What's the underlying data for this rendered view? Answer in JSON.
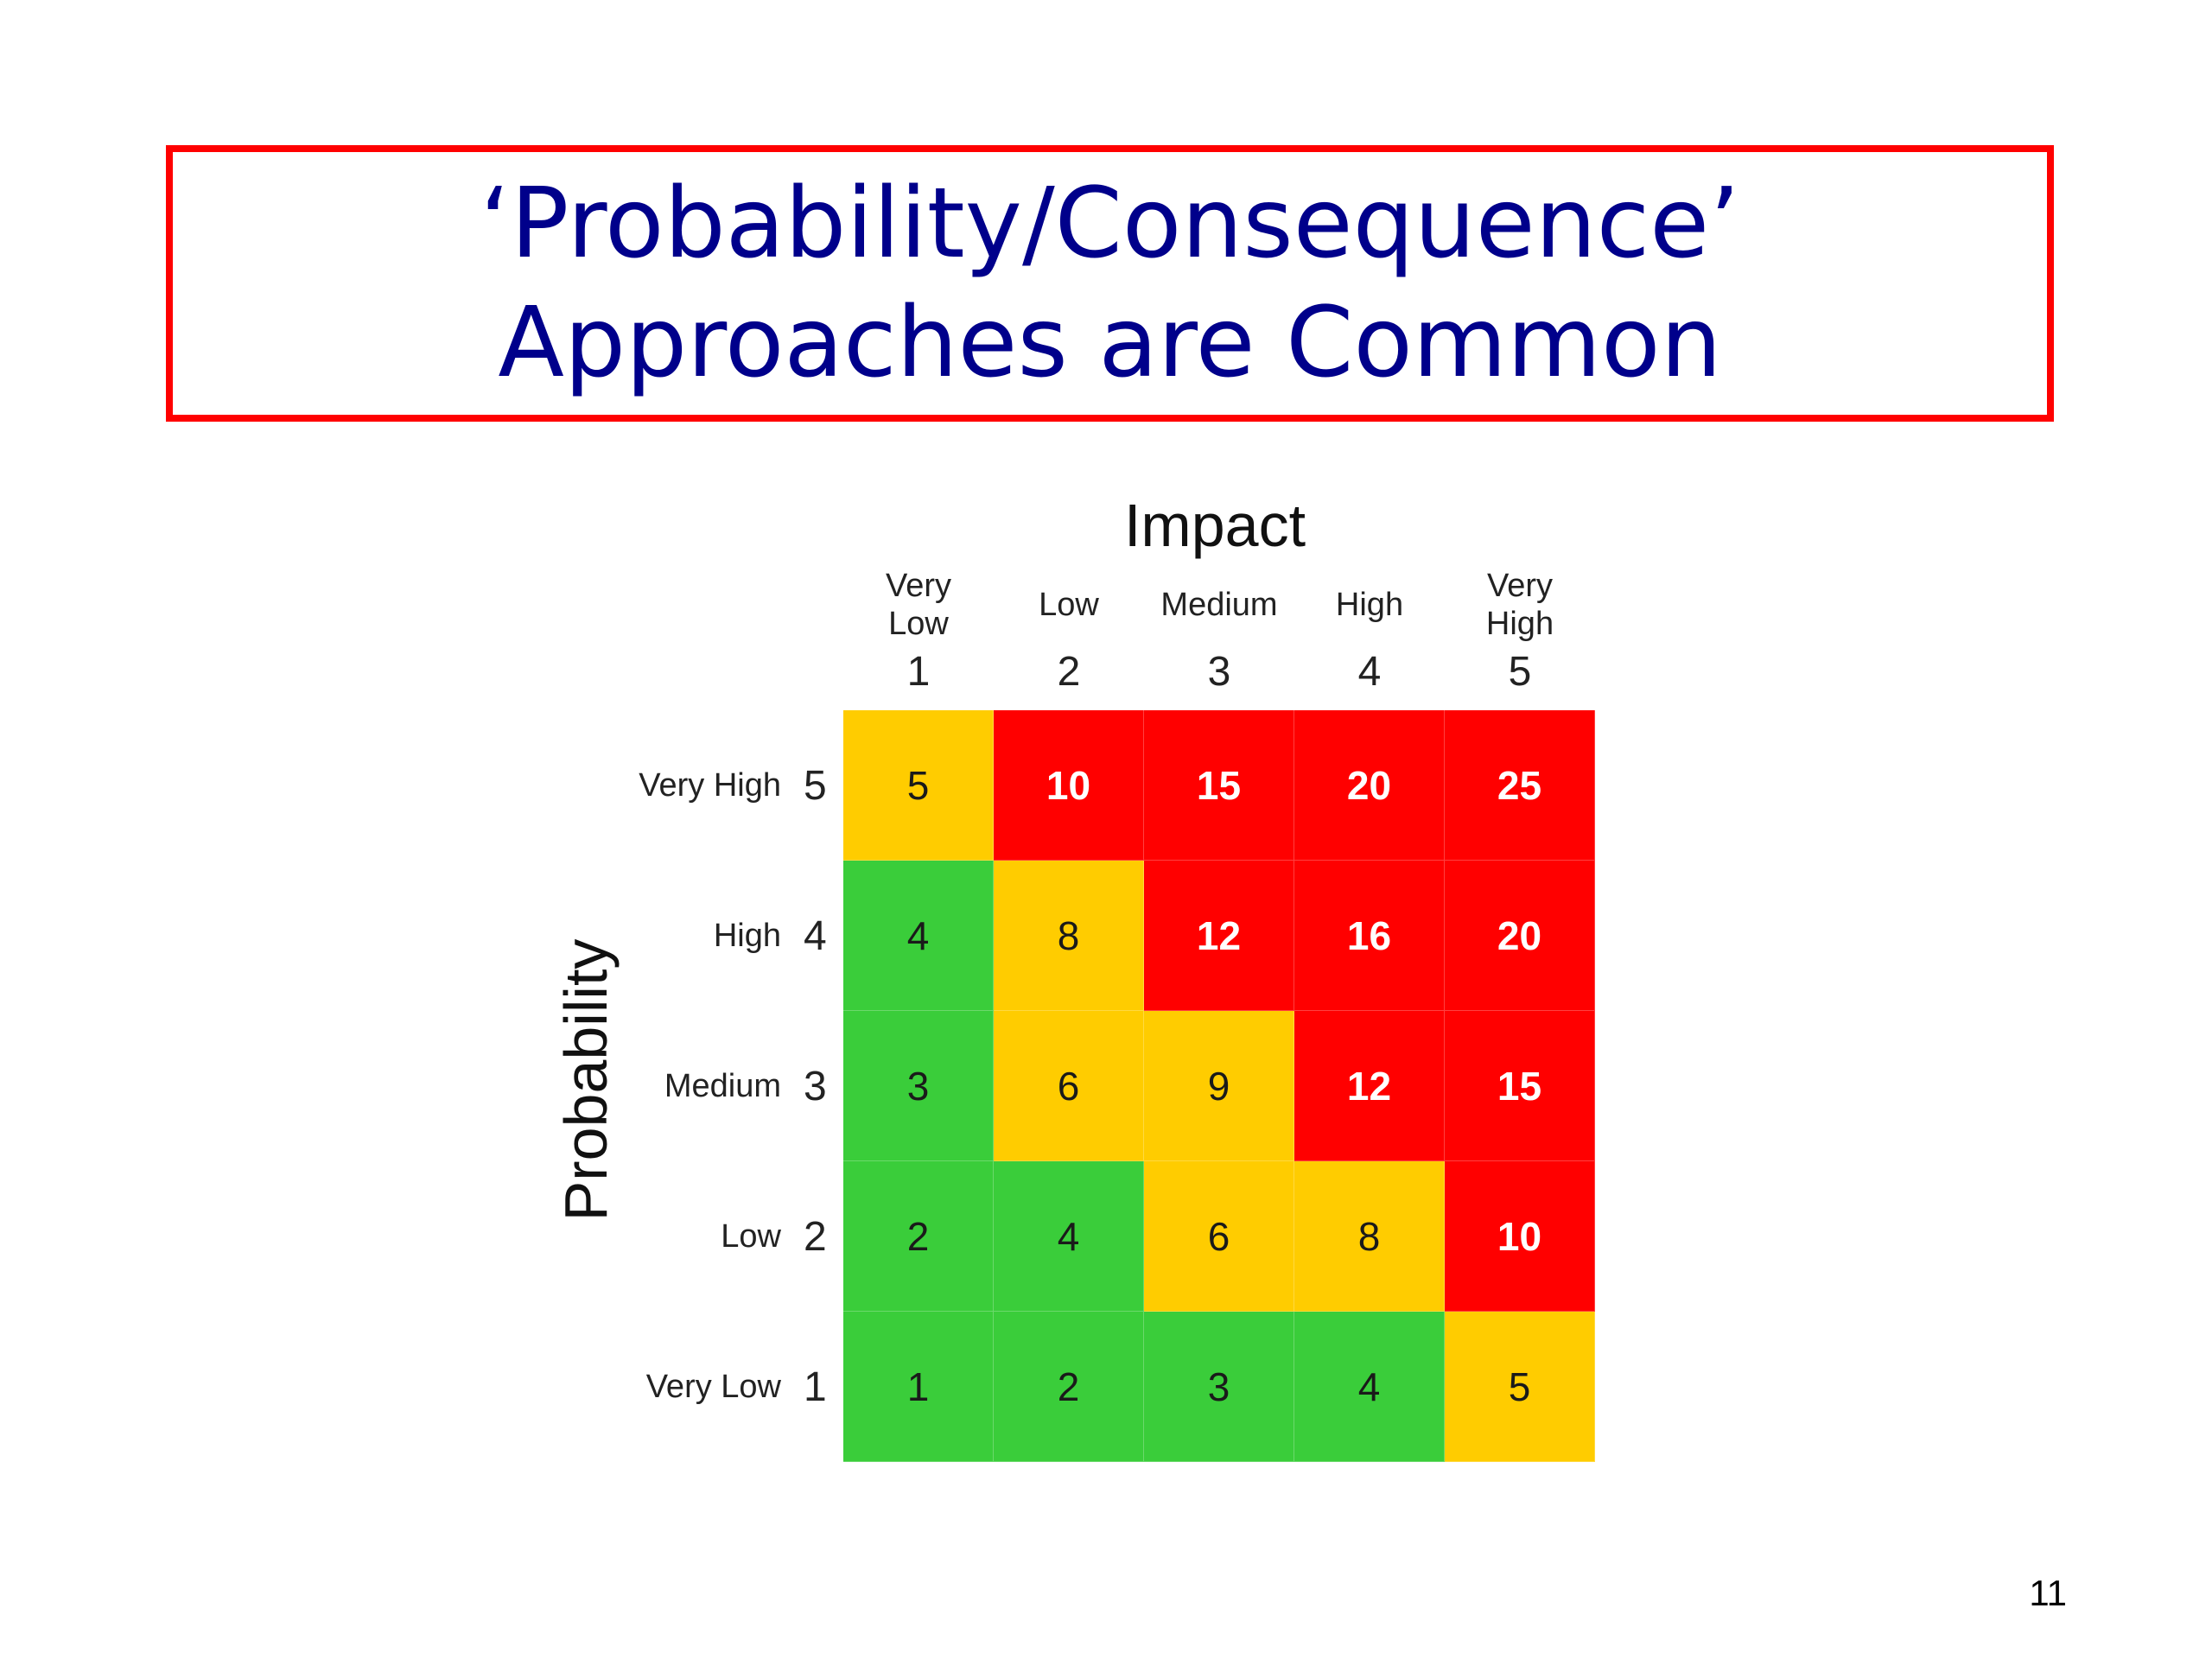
{
  "slide": {
    "title_line1": "‘Probability/Consequence’",
    "title_line2": "Approaches are Common",
    "page_number": "11"
  },
  "chart_data": {
    "type": "heatmap",
    "title": "",
    "xlabel": "Impact",
    "ylabel": "Probability",
    "x_categories": [
      {
        "label_lines": [
          "Very",
          "Low"
        ],
        "value": 1
      },
      {
        "label_lines": [
          "Low"
        ],
        "value": 2
      },
      {
        "label_lines": [
          "Medium"
        ],
        "value": 3
      },
      {
        "label_lines": [
          "High"
        ],
        "value": 4
      },
      {
        "label_lines": [
          "Very",
          "High"
        ],
        "value": 5
      }
    ],
    "y_categories": [
      {
        "label": "Very High",
        "value": 5
      },
      {
        "label": "High",
        "value": 4
      },
      {
        "label": "Medium",
        "value": 3
      },
      {
        "label": "Low",
        "value": 2
      },
      {
        "label": "Very Low",
        "value": 1
      }
    ],
    "values": [
      [
        5,
        10,
        15,
        20,
        25
      ],
      [
        4,
        8,
        12,
        16,
        20
      ],
      [
        3,
        6,
        9,
        12,
        15
      ],
      [
        2,
        4,
        6,
        8,
        10
      ],
      [
        1,
        2,
        3,
        4,
        5
      ]
    ],
    "levels": [
      [
        "yellow",
        "red",
        "red",
        "red",
        "red"
      ],
      [
        "green",
        "yellow",
        "red",
        "red",
        "red"
      ],
      [
        "green",
        "yellow",
        "yellow",
        "red",
        "red"
      ],
      [
        "green",
        "green",
        "yellow",
        "yellow",
        "red"
      ],
      [
        "green",
        "green",
        "green",
        "green",
        "yellow"
      ]
    ],
    "colors": {
      "green": "#3acd3a",
      "yellow": "#ffcc00",
      "red": "#ff0000"
    }
  }
}
